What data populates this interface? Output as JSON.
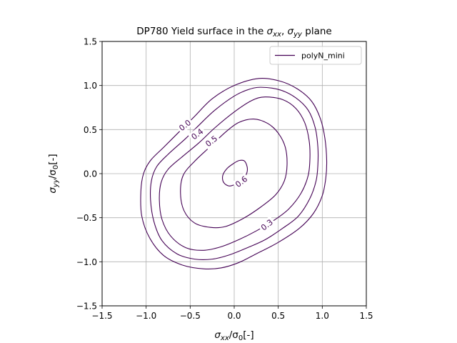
{
  "chart_data": {
    "type": "line",
    "title": {
      "prefix": "DP780 Yield surface in the ",
      "symbol1": "σ",
      "sub1": "xx",
      "separator": ", ",
      "symbol2": "σ",
      "sub2": "yy",
      "suffix": " plane"
    },
    "xlabel": {
      "symbol": "σ",
      "sub": "xx",
      "rest": "/σ",
      "sub0": "0",
      "unit": "[-]"
    },
    "ylabel": {
      "symbol": "σ",
      "sub": "yy",
      "rest": "/σ",
      "sub0": "0",
      "unit": "[-]"
    },
    "xlim": [
      -1.5,
      1.5
    ],
    "ylim": [
      -1.5,
      1.5
    ],
    "xticks": [
      -1.5,
      -1.0,
      -0.5,
      0.0,
      0.5,
      1.0,
      1.5
    ],
    "yticks": [
      -1.5,
      -1.0,
      -0.5,
      0.0,
      0.5,
      1.0,
      1.5
    ],
    "xtick_labels": [
      "−1.5",
      "−1.0",
      "−0.5",
      "0.0",
      "0.5",
      "1.0",
      "1.5"
    ],
    "ytick_labels": [
      "−1.5",
      "−1.0",
      "−0.5",
      "0.0",
      "0.5",
      "1.0",
      "1.5"
    ],
    "grid": true,
    "legend": {
      "position": "top-right",
      "entries": [
        "polyN_mini"
      ]
    },
    "series_color": "#440154",
    "contours": [
      {
        "label": "0.0",
        "label_at": [
          -0.56,
          0.55
        ],
        "label_angle": -38,
        "points": [
          [
            0.28,
            1.08
          ],
          [
            0.52,
            1.05
          ],
          [
            0.72,
            0.96
          ],
          [
            0.88,
            0.82
          ],
          [
            0.98,
            0.62
          ],
          [
            1.03,
            0.4
          ],
          [
            1.05,
            0.15
          ],
          [
            1.04,
            -0.05
          ],
          [
            1.0,
            -0.25
          ],
          [
            0.9,
            -0.45
          ],
          [
            0.74,
            -0.62
          ],
          [
            0.5,
            -0.78
          ],
          [
            0.25,
            -0.91
          ],
          [
            0.05,
            -1.01
          ],
          [
            -0.15,
            -1.07
          ],
          [
            -0.35,
            -1.08
          ],
          [
            -0.58,
            -1.04
          ],
          [
            -0.8,
            -0.93
          ],
          [
            -0.96,
            -0.73
          ],
          [
            -1.05,
            -0.48
          ],
          [
            -1.06,
            -0.2
          ],
          [
            -1.03,
            0.0
          ],
          [
            -0.95,
            0.15
          ],
          [
            -0.8,
            0.3
          ],
          [
            -0.62,
            0.48
          ],
          [
            -0.45,
            0.65
          ],
          [
            -0.25,
            0.85
          ],
          [
            0.0,
            1.0
          ],
          [
            0.28,
            1.08
          ]
        ]
      },
      {
        "label": "0.4",
        "label_at": [
          -0.42,
          0.45
        ],
        "label_angle": -38,
        "points": [
          [
            0.3,
            0.98
          ],
          [
            0.52,
            0.95
          ],
          [
            0.7,
            0.86
          ],
          [
            0.84,
            0.72
          ],
          [
            0.92,
            0.52
          ],
          [
            0.95,
            0.3
          ],
          [
            0.95,
            0.1
          ],
          [
            0.93,
            -0.08
          ],
          [
            0.86,
            -0.28
          ],
          [
            0.73,
            -0.48
          ],
          [
            0.55,
            -0.62
          ],
          [
            0.35,
            -0.75
          ],
          [
            0.15,
            -0.84
          ],
          [
            -0.05,
            -0.92
          ],
          [
            -0.25,
            -0.97
          ],
          [
            -0.45,
            -0.97
          ],
          [
            -0.65,
            -0.91
          ],
          [
            -0.82,
            -0.76
          ],
          [
            -0.91,
            -0.55
          ],
          [
            -0.95,
            -0.3
          ],
          [
            -0.94,
            -0.08
          ],
          [
            -0.88,
            0.08
          ],
          [
            -0.75,
            0.22
          ],
          [
            -0.55,
            0.4
          ],
          [
            -0.4,
            0.55
          ],
          [
            -0.22,
            0.72
          ],
          [
            0.0,
            0.88
          ],
          [
            0.15,
            0.95
          ],
          [
            0.3,
            0.98
          ]
        ]
      },
      {
        "label": "0.5",
        "label_at": [
          -0.26,
          0.37
        ],
        "label_angle": -38,
        "points": [
          [
            0.35,
            0.87
          ],
          [
            0.55,
            0.84
          ],
          [
            0.7,
            0.74
          ],
          [
            0.8,
            0.58
          ],
          [
            0.85,
            0.38
          ],
          [
            0.86,
            0.18
          ],
          [
            0.84,
            -0.02
          ],
          [
            0.76,
            -0.22
          ],
          [
            0.62,
            -0.4
          ],
          [
            0.45,
            -0.53
          ],
          [
            0.25,
            -0.65
          ],
          [
            0.05,
            -0.75
          ],
          [
            -0.15,
            -0.83
          ],
          [
            -0.35,
            -0.87
          ],
          [
            -0.55,
            -0.84
          ],
          [
            -0.72,
            -0.71
          ],
          [
            -0.82,
            -0.52
          ],
          [
            -0.85,
            -0.3
          ],
          [
            -0.83,
            -0.1
          ],
          [
            -0.75,
            0.05
          ],
          [
            -0.58,
            0.2
          ],
          [
            -0.4,
            0.35
          ],
          [
            -0.22,
            0.52
          ],
          [
            0.0,
            0.7
          ],
          [
            0.2,
            0.83
          ],
          [
            0.35,
            0.87
          ]
        ]
      },
      {
        "label": "0.3",
        "label_at": [
          0.37,
          -0.58
        ],
        "label_angle": -38,
        "points": [
          [
            0.22,
            0.62
          ],
          [
            0.38,
            0.57
          ],
          [
            0.5,
            0.46
          ],
          [
            0.58,
            0.3
          ],
          [
            0.6,
            0.1
          ],
          [
            0.57,
            -0.08
          ],
          [
            0.47,
            -0.24
          ],
          [
            0.3,
            -0.38
          ],
          [
            0.1,
            -0.51
          ],
          [
            -0.1,
            -0.6
          ],
          [
            -0.27,
            -0.61
          ],
          [
            -0.45,
            -0.56
          ],
          [
            -0.57,
            -0.42
          ],
          [
            -0.61,
            -0.22
          ],
          [
            -0.58,
            -0.02
          ],
          [
            -0.45,
            0.14
          ],
          [
            -0.28,
            0.3
          ],
          [
            -0.1,
            0.47
          ],
          [
            0.05,
            0.58
          ],
          [
            0.22,
            0.62
          ]
        ]
      },
      {
        "label": "0.6",
        "label_at": [
          0.08,
          -0.09
        ],
        "label_angle": -38,
        "points": [
          [
            0.12,
            0.14
          ],
          [
            0.15,
            0.05
          ],
          [
            0.12,
            -0.04
          ],
          [
            0.05,
            -0.1
          ],
          [
            -0.05,
            -0.14
          ],
          [
            -0.12,
            -0.1
          ],
          [
            -0.13,
            -0.02
          ],
          [
            -0.08,
            0.06
          ],
          [
            0.0,
            0.12
          ],
          [
            0.06,
            0.15
          ],
          [
            0.12,
            0.14
          ]
        ]
      }
    ]
  }
}
